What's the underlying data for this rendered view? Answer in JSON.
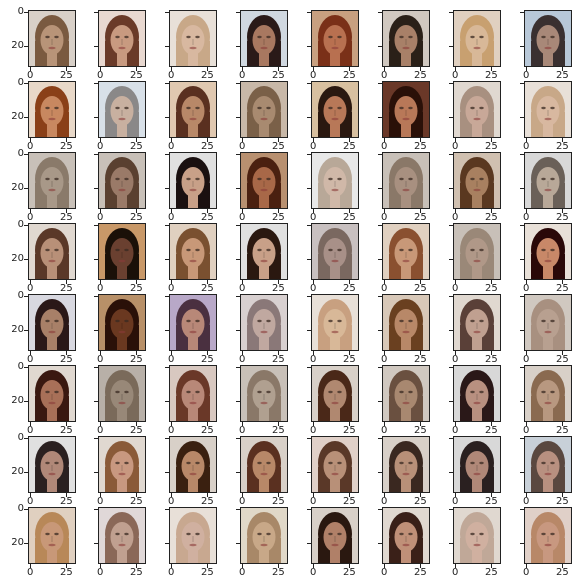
{
  "figure": {
    "rows": 8,
    "cols": 8,
    "y_tick_labels": [
      "0",
      "20"
    ],
    "x_tick_labels": [
      "0",
      "25"
    ]
  },
  "panels": [
    {
      "bg": "#d8d0c8",
      "skin": "#b89478",
      "hair": "#7a5a40"
    },
    {
      "bg": "#e8d8d0",
      "skin": "#c89a80",
      "hair": "#6a3a28"
    },
    {
      "bg": "#e8e0d8",
      "skin": "#d8b8a0",
      "hair": "#c8a888"
    },
    {
      "bg": "#d0d8e0",
      "skin": "#a87860",
      "hair": "#2a1a18"
    },
    {
      "bg": "#c8a080",
      "skin": "#b87050",
      "hair": "#7a3018"
    },
    {
      "bg": "#d0c8c0",
      "skin": "#a88068",
      "hair": "#2a2018"
    },
    {
      "bg": "#e0d0c0",
      "skin": "#d8b898",
      "hair": "#c8a070"
    },
    {
      "bg": "#b8c8d8",
      "skin": "#a88878",
      "hair": "#3a3030"
    },
    {
      "bg": "#e8d8c8",
      "skin": "#c88860",
      "hair": "#8a4018"
    },
    {
      "bg": "#d8e0e8",
      "skin": "#c8b0a0",
      "hair": "#8a8888"
    },
    {
      "bg": "#e0c8b0",
      "skin": "#b88868",
      "hair": "#5a3020"
    },
    {
      "bg": "#c8b8a8",
      "skin": "#a88a70",
      "hair": "#7a6048"
    },
    {
      "bg": "#d8c0a0",
      "skin": "#b87858",
      "hair": "#2a1810"
    },
    {
      "bg": "#6a3828",
      "skin": "#b87858",
      "hair": "#2a1008"
    },
    {
      "bg": "#e0d8d0",
      "skin": "#c8a898",
      "hair": "#a89080"
    },
    {
      "bg": "#e8e0d8",
      "skin": "#d8b8a0",
      "hair": "#c8a888"
    },
    {
      "bg": "#c8c0b8",
      "skin": "#a89888",
      "hair": "#8a7a6a"
    },
    {
      "bg": "#c8c0b8",
      "skin": "#9a7a68",
      "hair": "#5a4030"
    },
    {
      "bg": "#e0e0e0",
      "skin": "#c8a088",
      "hair": "#1a1010"
    },
    {
      "bg": "#b89070",
      "skin": "#a86848",
      "hair": "#4a2010"
    },
    {
      "bg": "#e8e8e8",
      "skin": "#d0b8a8",
      "hair": "#b8a898"
    },
    {
      "bg": "#c8c0b8",
      "skin": "#a89080",
      "hair": "#8a7868"
    },
    {
      "bg": "#d0c0b0",
      "skin": "#a88060",
      "hair": "#5a3820"
    },
    {
      "bg": "#d8d8d8",
      "skin": "#b8a898",
      "hair": "#6a6058"
    },
    {
      "bg": "#e0d8d0",
      "skin": "#b89078",
      "hair": "#5a3828"
    },
    {
      "bg": "#c89868",
      "skin": "#6a4030",
      "hair": "#1a1008"
    },
    {
      "bg": "#e0d0c0",
      "skin": "#c89878",
      "hair": "#7a5030"
    },
    {
      "bg": "#e0e0e0",
      "skin": "#c8a088",
      "hair": "#2a1810"
    },
    {
      "bg": "#c8c0c0",
      "skin": "#a89088",
      "hair": "#7a6860"
    },
    {
      "bg": "#e0d0c0",
      "skin": "#c89878",
      "hair": "#8a5030"
    },
    {
      "bg": "#c8c0b8",
      "skin": "#b09888",
      "hair": "#9a8878"
    },
    {
      "bg": "#e8e0d8",
      "skin": "#c88868",
      "hair": "#2a0808"
    },
    {
      "bg": "#d8d8e0",
      "skin": "#a88068",
      "hair": "#2a1818"
    },
    {
      "bg": "#b89068",
      "skin": "#6a3820",
      "hair": "#2a1008"
    },
    {
      "bg": "#b8a8c8",
      "skin": "#b88878",
      "hair": "#4a3040"
    },
    {
      "bg": "#d8d0d0",
      "skin": "#c0a8a0",
      "hair": "#8a7878"
    },
    {
      "bg": "#e8e0d8",
      "skin": "#d8b898",
      "hair": "#c8a080"
    },
    {
      "bg": "#d8c8b8",
      "skin": "#b88868",
      "hair": "#6a4020"
    },
    {
      "bg": "#e0d8d0",
      "skin": "#c0a090",
      "hair": "#5a4038"
    },
    {
      "bg": "#d0c8c0",
      "skin": "#b8a090",
      "hair": "#a89080"
    },
    {
      "bg": "#e0d8d0",
      "skin": "#a87058",
      "hair": "#3a1810"
    },
    {
      "bg": "#b8b0a8",
      "skin": "#988878",
      "hair": "#7a6a5a"
    },
    {
      "bg": "#d8c8c0",
      "skin": "#b88878",
      "hair": "#6a3828"
    },
    {
      "bg": "#c8c0b8",
      "skin": "#b0a090",
      "hair": "#8a7868"
    },
    {
      "bg": "#d8d0c8",
      "skin": "#b08870",
      "hair": "#4a2818"
    },
    {
      "bg": "#d0c8c0",
      "skin": "#a88870",
      "hair": "#6a5040"
    },
    {
      "bg": "#d8d8d8",
      "skin": "#b89080",
      "hair": "#2a1818"
    },
    {
      "bg": "#d8d0c8",
      "skin": "#b89880",
      "hair": "#8a6a50"
    },
    {
      "bg": "#e0e0e0",
      "skin": "#b08878",
      "hair": "#2a2020"
    },
    {
      "bg": "#e0d8d0",
      "skin": "#c89880",
      "hair": "#8a5a38"
    },
    {
      "bg": "#d8d0c8",
      "skin": "#b88868",
      "hair": "#3a2010"
    },
    {
      "bg": "#d8d0c8",
      "skin": "#b88868",
      "hair": "#5a3020"
    },
    {
      "bg": "#e0d0c8",
      "skin": "#b89078",
      "hair": "#5a3828"
    },
    {
      "bg": "#d8d0c8",
      "skin": "#b89078",
      "hair": "#3a2820"
    },
    {
      "bg": "#d8d8d8",
      "skin": "#b08878",
      "hair": "#2a2020"
    },
    {
      "bg": "#c8d0d8",
      "skin": "#b89080",
      "hair": "#5a4840"
    },
    {
      "bg": "#e0d0c0",
      "skin": "#c89878",
      "hair": "#b88858"
    },
    {
      "bg": "#e0d8d8",
      "skin": "#c0a090",
      "hair": "#8a6858"
    },
    {
      "bg": "#e8e0d8",
      "skin": "#d0b0a0",
      "hair": "#c8a890"
    },
    {
      "bg": "#e0d8c8",
      "skin": "#c8a888",
      "hair": "#a88868"
    },
    {
      "bg": "#d8d0c8",
      "skin": "#b08068",
      "hair": "#2a1810"
    },
    {
      "bg": "#e0d8d0",
      "skin": "#c09078",
      "hair": "#3a2018"
    },
    {
      "bg": "#e0d8d0",
      "skin": "#d0b0a0",
      "hair": "#c0a898"
    },
    {
      "bg": "#e0d0c8",
      "skin": "#c89880",
      "hair": "#b88868"
    }
  ]
}
